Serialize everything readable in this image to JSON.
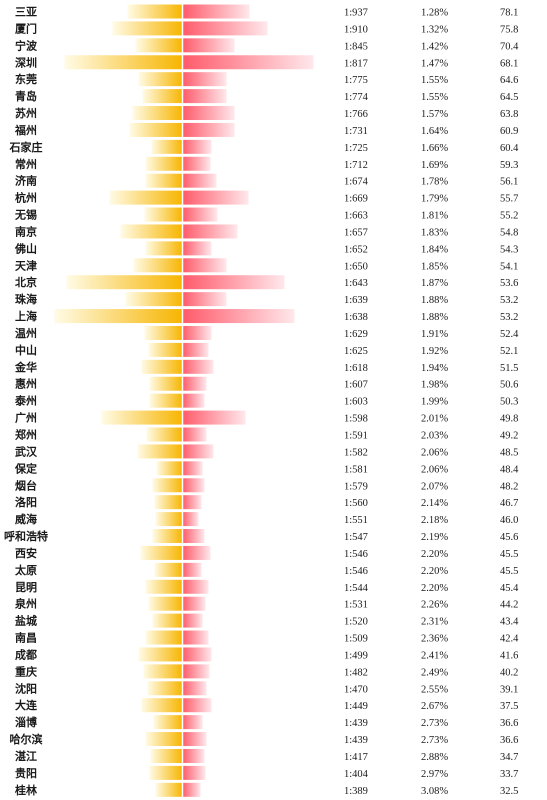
{
  "chart_data": {
    "type": "bar",
    "orientation": "horizontal-diverging",
    "title": "",
    "colors": {
      "left_start": "#fffbe6",
      "left_end": "#f7b500",
      "right_start": "#ff5a6a",
      "right_end": "#ffe8ec",
      "center_line": "#ffffff",
      "text": "#1a1a1a"
    },
    "columns": [
      "ratio",
      "percent",
      "value"
    ],
    "rows": [
      {
        "city": "三亚",
        "left": 55,
        "right": 67,
        "ratio": "1:937",
        "percent": "1.28%",
        "value": 78.1
      },
      {
        "city": "厦门",
        "left": 70,
        "right": 85,
        "ratio": "1:910",
        "percent": "1.32%",
        "value": 75.8
      },
      {
        "city": "宁波",
        "left": 47,
        "right": 52,
        "ratio": "1:845",
        "percent": "1.42%",
        "value": 70.4
      },
      {
        "city": "深圳",
        "left": 118,
        "right": 131,
        "ratio": "1:817",
        "percent": "1.47%",
        "value": 68.1
      },
      {
        "city": "东莞",
        "left": 44,
        "right": 44,
        "ratio": "1:775",
        "percent": "1.55%",
        "value": 64.6
      },
      {
        "city": "青岛",
        "left": 40,
        "right": 44,
        "ratio": "1:774",
        "percent": "1.55%",
        "value": 64.5
      },
      {
        "city": "苏州",
        "left": 50,
        "right": 52,
        "ratio": "1:766",
        "percent": "1.57%",
        "value": 63.8
      },
      {
        "city": "福州",
        "left": 53,
        "right": 52,
        "ratio": "1:731",
        "percent": "1.64%",
        "value": 60.9
      },
      {
        "city": "石家庄",
        "left": 31,
        "right": 29,
        "ratio": "1:725",
        "percent": "1.66%",
        "value": 60.4
      },
      {
        "city": "常州",
        "left": 37,
        "right": 28,
        "ratio": "1:712",
        "percent": "1.69%",
        "value": 59.3
      },
      {
        "city": "济南",
        "left": 37,
        "right": 34,
        "ratio": "1:674",
        "percent": "1.78%",
        "value": 56.1
      },
      {
        "city": "杭州",
        "left": 73,
        "right": 66,
        "ratio": "1:669",
        "percent": "1.79%",
        "value": 55.7
      },
      {
        "city": "无锡",
        "left": 38,
        "right": 35,
        "ratio": "1:663",
        "percent": "1.81%",
        "value": 55.2
      },
      {
        "city": "南京",
        "left": 62,
        "right": 55,
        "ratio": "1:657",
        "percent": "1.83%",
        "value": 54.8
      },
      {
        "city": "佛山",
        "left": 37,
        "right": 29,
        "ratio": "1:652",
        "percent": "1.84%",
        "value": 54.3
      },
      {
        "city": "天津",
        "left": 49,
        "right": 44,
        "ratio": "1:650",
        "percent": "1.85%",
        "value": 54.1
      },
      {
        "city": "北京",
        "left": 116,
        "right": 102,
        "ratio": "1:643",
        "percent": "1.87%",
        "value": 53.6
      },
      {
        "city": "珠海",
        "left": 57,
        "right": 44,
        "ratio": "1:639",
        "percent": "1.88%",
        "value": 53.2
      },
      {
        "city": "上海",
        "left": 128,
        "right": 112,
        "ratio": "1:638",
        "percent": "1.88%",
        "value": 53.2
      },
      {
        "city": "温州",
        "left": 38,
        "right": 29,
        "ratio": "1:629",
        "percent": "1.91%",
        "value": 52.4
      },
      {
        "city": "中山",
        "left": 34,
        "right": 26,
        "ratio": "1:625",
        "percent": "1.92%",
        "value": 52.1
      },
      {
        "city": "金华",
        "left": 41,
        "right": 31,
        "ratio": "1:618",
        "percent": "1.94%",
        "value": 51.5
      },
      {
        "city": "惠州",
        "left": 33,
        "right": 24,
        "ratio": "1:607",
        "percent": "1.98%",
        "value": 50.6
      },
      {
        "city": "泰州",
        "left": 33,
        "right": 22,
        "ratio": "1:603",
        "percent": "1.99%",
        "value": 50.3
      },
      {
        "city": "广州",
        "left": 81,
        "right": 63,
        "ratio": "1:598",
        "percent": "2.01%",
        "value": 49.8
      },
      {
        "city": "郑州",
        "left": 36,
        "right": 24,
        "ratio": "1:591",
        "percent": "2.03%",
        "value": 49.2
      },
      {
        "city": "武汉",
        "left": 45,
        "right": 31,
        "ratio": "1:582",
        "percent": "2.06%",
        "value": 48.5
      },
      {
        "city": "保定",
        "left": 26,
        "right": 20,
        "ratio": "1:581",
        "percent": "2.06%",
        "value": 48.4
      },
      {
        "city": "烟台",
        "left": 30,
        "right": 22,
        "ratio": "1:579",
        "percent": "2.07%",
        "value": 48.2
      },
      {
        "city": "洛阳",
        "left": 28,
        "right": 19,
        "ratio": "1:560",
        "percent": "2.14%",
        "value": 46.7
      },
      {
        "city": "威海",
        "left": 27,
        "right": 16,
        "ratio": "1:551",
        "percent": "2.18%",
        "value": 46.0
      },
      {
        "city": "呼和浩特",
        "left": 30,
        "right": 22,
        "ratio": "1:547",
        "percent": "2.19%",
        "value": 45.6
      },
      {
        "city": "西安",
        "left": 42,
        "right": 28,
        "ratio": "1:546",
        "percent": "2.20%",
        "value": 45.5
      },
      {
        "city": "太原",
        "left": 28,
        "right": 19,
        "ratio": "1:546",
        "percent": "2.20%",
        "value": 45.5
      },
      {
        "city": "昆明",
        "left": 37,
        "right": 26,
        "ratio": "1:544",
        "percent": "2.20%",
        "value": 45.4
      },
      {
        "city": "泉州",
        "left": 34,
        "right": 23,
        "ratio": "1:531",
        "percent": "2.26%",
        "value": 44.2
      },
      {
        "city": "盐城",
        "left": 30,
        "right": 20,
        "ratio": "1:520",
        "percent": "2.31%",
        "value": 43.4
      },
      {
        "city": "南昌",
        "left": 37,
        "right": 26,
        "ratio": "1:509",
        "percent": "2.36%",
        "value": 42.4
      },
      {
        "city": "成都",
        "left": 44,
        "right": 29,
        "ratio": "1:499",
        "percent": "2.41%",
        "value": 41.6
      },
      {
        "city": "重庆",
        "left": 39,
        "right": 27,
        "ratio": "1:482",
        "percent": "2.49%",
        "value": 40.2
      },
      {
        "city": "沈阳",
        "left": 35,
        "right": 24,
        "ratio": "1:470",
        "percent": "2.55%",
        "value": 39.1
      },
      {
        "city": "大连",
        "left": 41,
        "right": 29,
        "ratio": "1:449",
        "percent": "2.67%",
        "value": 37.5
      },
      {
        "city": "淄博",
        "left": 29,
        "right": 20,
        "ratio": "1:439",
        "percent": "2.73%",
        "value": 36.6
      },
      {
        "city": "哈尔滨",
        "left": 37,
        "right": 24,
        "ratio": "1:439",
        "percent": "2.73%",
        "value": 36.6
      },
      {
        "city": "湛江",
        "left": 32,
        "right": 22,
        "ratio": "1:417",
        "percent": "2.88%",
        "value": 34.7
      },
      {
        "city": "贵阳",
        "left": 33,
        "right": 23,
        "ratio": "1:404",
        "percent": "2.97%",
        "value": 33.7
      },
      {
        "city": "桂林",
        "left": 27,
        "right": 18,
        "ratio": "1:389",
        "percent": "3.08%",
        "value": 32.5
      }
    ]
  }
}
